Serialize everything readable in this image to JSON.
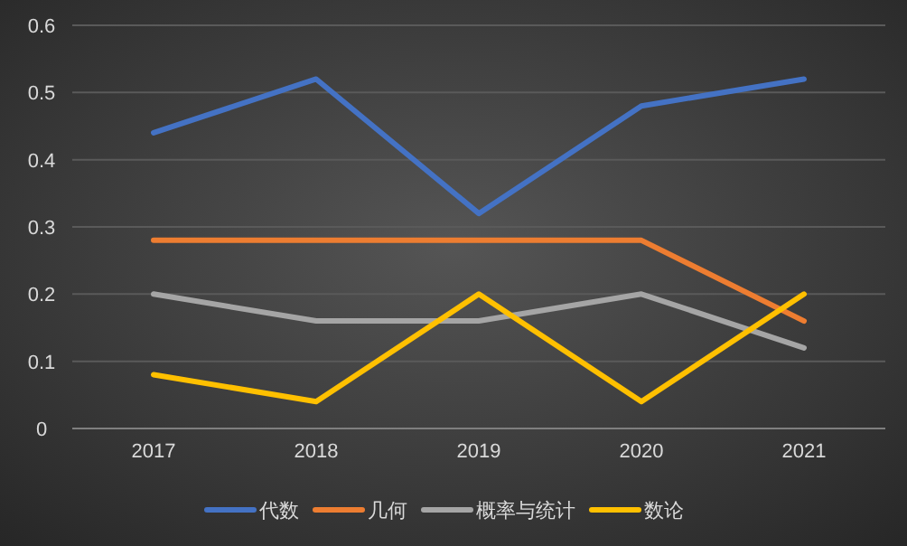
{
  "chart_data": {
    "type": "line",
    "categories": [
      "2017",
      "2018",
      "2019",
      "2020",
      "2021"
    ],
    "series": [
      {
        "name": "代数",
        "color": "#4472c4",
        "values": [
          0.44,
          0.52,
          0.32,
          0.48,
          0.52
        ]
      },
      {
        "name": "几何",
        "color": "#ed7d31",
        "values": [
          0.28,
          0.28,
          0.28,
          0.28,
          0.16
        ]
      },
      {
        "name": "概率与统计",
        "color": "#a5a5a5",
        "values": [
          0.2,
          0.16,
          0.16,
          0.2,
          0.12
        ]
      },
      {
        "name": "数论",
        "color": "#ffc000",
        "values": [
          0.08,
          0.04,
          0.2,
          0.04,
          0.2
        ]
      }
    ],
    "ylim": [
      0,
      0.6
    ],
    "yticks": [
      0,
      0.1,
      0.2,
      0.3,
      0.4,
      0.5,
      0.6
    ],
    "grid": "y",
    "legend": "bottom",
    "line_style": "solid",
    "marker": "none"
  }
}
